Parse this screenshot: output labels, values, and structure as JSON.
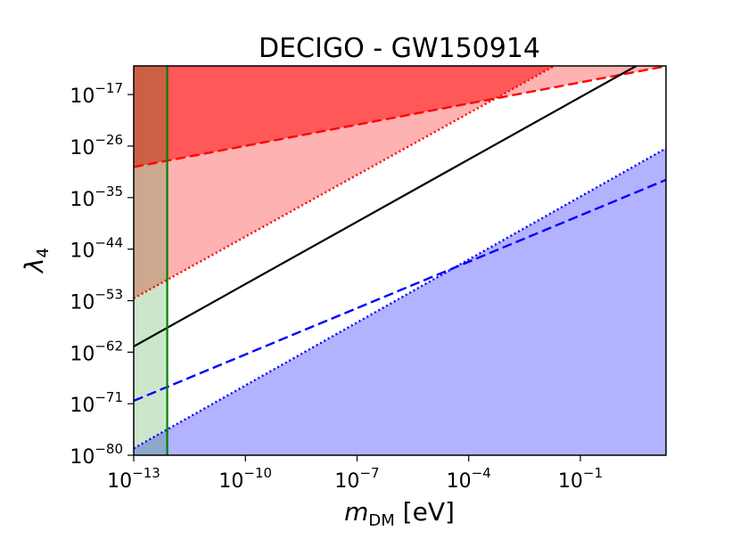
{
  "chart_data": {
    "type": "line",
    "title": "DECIGO - GW150914",
    "xlabel": {
      "main": "m",
      "sub": "DM",
      "unit": " [eV]"
    },
    "ylabel": {
      "main": "λ",
      "sub": "4"
    },
    "xscale": "log",
    "yscale": "log",
    "xlim_log10": [
      -13,
      1.3
    ],
    "ylim_log10": [
      -80,
      -12
    ],
    "grid": false,
    "x_ticks": [
      {
        "base": "10",
        "exp": "−13",
        "log10": -13
      },
      {
        "base": "10",
        "exp": "−10",
        "log10": -10
      },
      {
        "base": "10",
        "exp": "−7",
        "log10": -7
      },
      {
        "base": "10",
        "exp": "−4",
        "log10": -4
      },
      {
        "base": "10",
        "exp": "−1",
        "log10": -1
      }
    ],
    "y_ticks": [
      {
        "base": "10",
        "exp": "−17",
        "log10": -17
      },
      {
        "base": "10",
        "exp": "−26",
        "log10": -26
      },
      {
        "base": "10",
        "exp": "−35",
        "log10": -35
      },
      {
        "base": "10",
        "exp": "−44",
        "log10": -44
      },
      {
        "base": "10",
        "exp": "−53",
        "log10": -53
      },
      {
        "base": "10",
        "exp": "−62",
        "log10": -62
      },
      {
        "base": "10",
        "exp": "−71",
        "log10": -71
      },
      {
        "base": "10",
        "exp": "−80",
        "log10": -80
      }
    ],
    "regions": [
      {
        "name": "excluded-region-red-upper",
        "color": "#ff0000",
        "opacity": 0.5,
        "fill_above": "dashed-red",
        "clip_above": "dotted-red"
      },
      {
        "name": "excluded-region-red-light",
        "color": "#ff0000",
        "opacity": 0.3,
        "fill_above": "dotted-red"
      },
      {
        "name": "excluded-region-blue",
        "color": "#0000ff",
        "opacity": 0.3,
        "fill_below": "dotted-blue"
      },
      {
        "name": "excluded-region-green",
        "color": "#008000",
        "opacity": 0.2,
        "x_max_log10": -12.1
      }
    ],
    "series": [
      {
        "name": "dashed-red",
        "color": "#ff0000",
        "style": "dashed",
        "x_log10": [
          -13,
          1.3
        ],
        "y_log10": [
          -29.66,
          -12.04
        ]
      },
      {
        "name": "dotted-red",
        "color": "#ff0000",
        "style": "dotted",
        "x_log10": [
          -13,
          -1.7
        ],
        "y_log10": [
          -52.6,
          -12.0
        ]
      },
      {
        "name": "solid-black",
        "color": "#000000",
        "style": "solid",
        "x_log10": [
          -13,
          0.5
        ],
        "y_log10": [
          -61.0,
          -12.0
        ]
      },
      {
        "name": "dashed-blue",
        "color": "#0000ff",
        "style": "dashed",
        "x_log10": [
          -13,
          1.3
        ],
        "y_log10": [
          -70.5,
          -31.9
        ]
      },
      {
        "name": "dotted-blue",
        "color": "#0000ff",
        "style": "dotted",
        "x_log10": [
          -13,
          1.3
        ],
        "y_log10": [
          -78.8,
          -26.4
        ]
      },
      {
        "name": "green-vertical",
        "color": "#008000",
        "style": "solid",
        "x_log10": [
          -12.1,
          -12.1
        ],
        "y_log10": [
          -80,
          -12
        ]
      }
    ]
  }
}
